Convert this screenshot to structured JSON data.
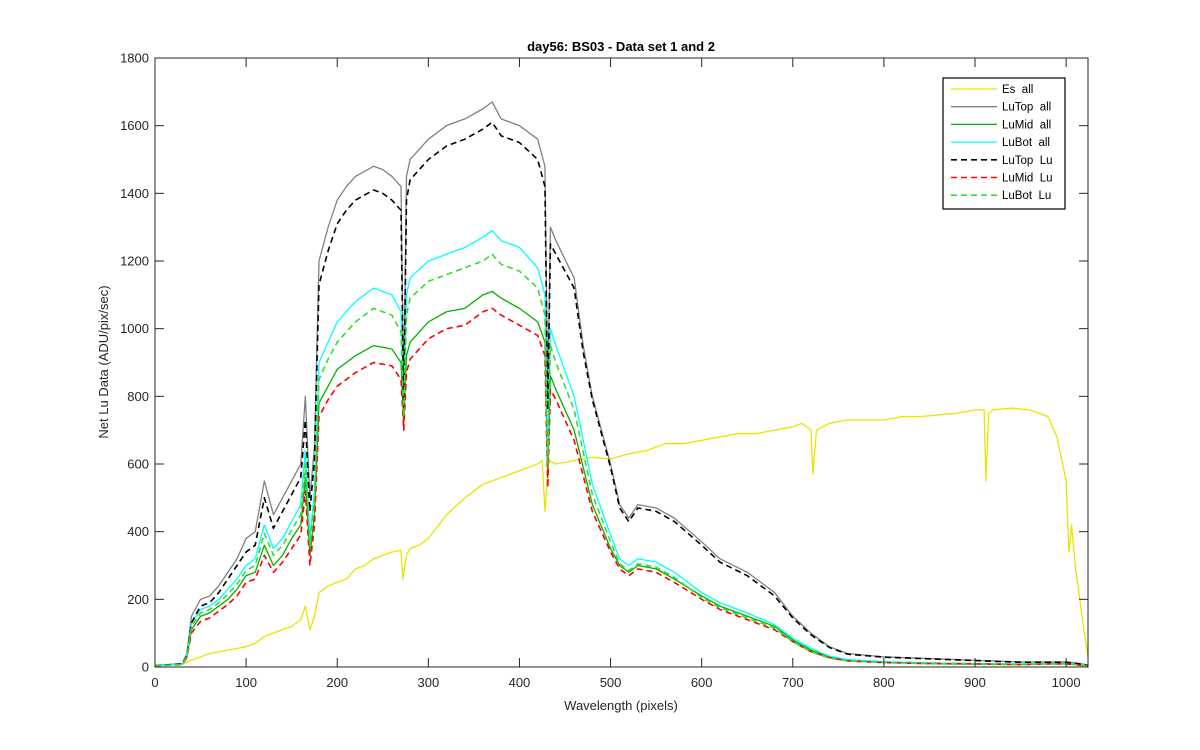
{
  "chart_data": {
    "type": "line",
    "title": "day56: BS03 - Data set 1 and 2",
    "xlabel": "Wavelength (pixels)",
    "ylabel": "Net Lu Data (ADU/pix/sec)",
    "xlim": [
      0,
      1024
    ],
    "ylim": [
      0,
      1800
    ],
    "xticks": [
      0,
      100,
      200,
      300,
      400,
      500,
      600,
      700,
      800,
      900,
      1000
    ],
    "yticks": [
      0,
      200,
      400,
      600,
      800,
      1000,
      1200,
      1400,
      1600,
      1800
    ],
    "grid": false,
    "legend_position": "top-right",
    "series": [
      {
        "name": "Es  all",
        "color": "#e6e600",
        "style": "solid",
        "width": 1.3,
        "x": [
          0,
          30,
          40,
          50,
          60,
          80,
          100,
          110,
          120,
          130,
          140,
          150,
          160,
          165,
          170,
          175,
          180,
          190,
          200,
          210,
          220,
          230,
          240,
          250,
          260,
          270,
          272,
          276,
          280,
          290,
          300,
          320,
          340,
          360,
          380,
          400,
          420,
          425,
          428,
          432,
          440,
          460,
          480,
          500,
          520,
          540,
          560,
          580,
          600,
          620,
          640,
          660,
          680,
          700,
          710,
          720,
          722,
          726,
          740,
          760,
          780,
          800,
          820,
          840,
          860,
          880,
          900,
          910,
          912,
          915,
          920,
          940,
          960,
          980,
          990,
          1000,
          1003,
          1006,
          1010,
          1020,
          1024
        ],
        "values": [
          5,
          8,
          20,
          30,
          40,
          50,
          60,
          70,
          90,
          100,
          110,
          120,
          140,
          180,
          110,
          150,
          220,
          240,
          250,
          260,
          290,
          300,
          320,
          330,
          340,
          345,
          260,
          330,
          350,
          360,
          380,
          450,
          500,
          540,
          560,
          580,
          600,
          610,
          460,
          610,
          600,
          610,
          620,
          615,
          630,
          640,
          660,
          660,
          670,
          680,
          690,
          690,
          700,
          710,
          720,
          700,
          570,
          700,
          720,
          730,
          730,
          730,
          740,
          740,
          745,
          750,
          760,
          760,
          550,
          750,
          760,
          765,
          760,
          740,
          680,
          550,
          340,
          420,
          300,
          100,
          30
        ]
      },
      {
        "name": "LuTop  all",
        "color": "#808080",
        "style": "solid",
        "width": 1.3,
        "x": [
          0,
          30,
          35,
          40,
          50,
          60,
          70,
          80,
          90,
          100,
          110,
          120,
          130,
          140,
          150,
          160,
          165,
          170,
          175,
          180,
          190,
          200,
          210,
          220,
          240,
          250,
          260,
          270,
          273,
          276,
          280,
          300,
          320,
          340,
          360,
          370,
          380,
          400,
          420,
          428,
          431,
          434,
          440,
          460,
          470,
          480,
          490,
          500,
          510,
          520,
          530,
          550,
          570,
          600,
          620,
          650,
          680,
          700,
          720,
          740,
          760,
          800,
          850,
          900,
          950,
          980,
          1000,
          1010,
          1020,
          1024
        ],
        "values": [
          5,
          10,
          40,
          150,
          200,
          210,
          240,
          280,
          320,
          380,
          400,
          550,
          450,
          500,
          550,
          600,
          800,
          500,
          650,
          1200,
          1300,
          1380,
          1420,
          1450,
          1480,
          1470,
          1450,
          1420,
          800,
          1450,
          1500,
          1560,
          1600,
          1620,
          1650,
          1670,
          1620,
          1600,
          1560,
          1480,
          800,
          1300,
          1260,
          1150,
          950,
          800,
          700,
          600,
          480,
          440,
          480,
          470,
          440,
          370,
          320,
          280,
          220,
          150,
          100,
          60,
          40,
          30,
          25,
          20,
          15,
          15,
          15,
          12,
          8,
          5
        ]
      },
      {
        "name": "LuMid  all",
        "color": "#00b300",
        "style": "solid",
        "width": 1.3,
        "x": [
          0,
          30,
          35,
          40,
          50,
          60,
          70,
          80,
          90,
          100,
          110,
          120,
          130,
          140,
          150,
          160,
          165,
          170,
          175,
          180,
          190,
          200,
          220,
          240,
          260,
          270,
          273,
          276,
          280,
          300,
          320,
          340,
          360,
          370,
          380,
          400,
          420,
          428,
          431,
          434,
          440,
          460,
          480,
          500,
          510,
          520,
          530,
          550,
          570,
          600,
          620,
          650,
          680,
          700,
          720,
          740,
          760,
          800,
          850,
          900,
          950,
          980,
          1000,
          1010,
          1020,
          1024
        ],
        "values": [
          5,
          8,
          30,
          110,
          150,
          160,
          180,
          200,
          230,
          270,
          280,
          360,
          300,
          330,
          380,
          420,
          560,
          330,
          450,
          780,
          830,
          880,
          920,
          950,
          940,
          900,
          720,
          920,
          960,
          1020,
          1050,
          1060,
          1100,
          1110,
          1090,
          1060,
          1020,
          960,
          560,
          860,
          820,
          700,
          480,
          350,
          300,
          280,
          300,
          290,
          260,
          210,
          180,
          150,
          120,
          80,
          50,
          30,
          20,
          15,
          12,
          10,
          8,
          10,
          10,
          8,
          5,
          3
        ]
      },
      {
        "name": "LuBot  all",
        "color": "#00ffff",
        "style": "solid",
        "width": 1.3,
        "x": [
          0,
          30,
          35,
          40,
          50,
          60,
          70,
          80,
          90,
          100,
          110,
          120,
          130,
          140,
          150,
          160,
          165,
          170,
          175,
          180,
          190,
          200,
          220,
          240,
          260,
          270,
          273,
          276,
          280,
          300,
          320,
          340,
          360,
          370,
          380,
          400,
          420,
          428,
          431,
          434,
          440,
          460,
          480,
          500,
          510,
          520,
          530,
          550,
          570,
          600,
          620,
          650,
          680,
          700,
          720,
          740,
          760,
          800,
          850,
          900,
          950,
          980,
          1000,
          1010,
          1020,
          1024
        ],
        "values": [
          5,
          8,
          35,
          130,
          170,
          180,
          200,
          230,
          260,
          300,
          320,
          420,
          350,
          380,
          430,
          480,
          640,
          380,
          520,
          900,
          960,
          1020,
          1080,
          1120,
          1100,
          1050,
          780,
          1100,
          1150,
          1200,
          1220,
          1240,
          1270,
          1290,
          1260,
          1240,
          1180,
          1100,
          620,
          1000,
          950,
          800,
          540,
          390,
          320,
          300,
          320,
          310,
          280,
          220,
          190,
          160,
          125,
          85,
          55,
          32,
          22,
          16,
          12,
          10,
          9,
          11,
          11,
          9,
          6,
          3
        ]
      },
      {
        "name": "LuTop  Lu",
        "color": "#000000",
        "style": "dashed",
        "width": 1.6,
        "x": [
          0,
          30,
          35,
          40,
          50,
          60,
          70,
          80,
          90,
          100,
          110,
          120,
          130,
          140,
          150,
          160,
          165,
          170,
          175,
          180,
          190,
          200,
          210,
          220,
          240,
          250,
          260,
          270,
          273,
          276,
          280,
          300,
          320,
          340,
          360,
          370,
          380,
          400,
          420,
          428,
          431,
          434,
          440,
          460,
          470,
          480,
          490,
          500,
          510,
          520,
          530,
          550,
          570,
          600,
          620,
          650,
          680,
          700,
          720,
          740,
          760,
          800,
          850,
          900,
          950,
          980,
          1000,
          1010,
          1020,
          1024
        ],
        "values": [
          4,
          9,
          35,
          130,
          180,
          190,
          220,
          260,
          300,
          340,
          360,
          500,
          410,
          460,
          510,
          560,
          730,
          460,
          610,
          1130,
          1230,
          1310,
          1350,
          1380,
          1410,
          1400,
          1380,
          1350,
          760,
          1380,
          1440,
          1500,
          1540,
          1560,
          1590,
          1610,
          1570,
          1550,
          1500,
          1420,
          760,
          1250,
          1220,
          1120,
          930,
          790,
          690,
          590,
          470,
          430,
          470,
          460,
          430,
          360,
          310,
          270,
          210,
          145,
          95,
          58,
          38,
          29,
          24,
          19,
          14,
          14,
          14,
          11,
          7,
          4
        ]
      },
      {
        "name": "LuMid  Lu",
        "color": "#ff0000",
        "style": "dashed",
        "width": 1.6,
        "x": [
          0,
          30,
          35,
          40,
          50,
          60,
          70,
          80,
          90,
          100,
          110,
          120,
          130,
          140,
          150,
          160,
          165,
          170,
          175,
          180,
          190,
          200,
          220,
          240,
          260,
          270,
          273,
          276,
          280,
          300,
          320,
          340,
          360,
          370,
          380,
          400,
          420,
          428,
          431,
          434,
          440,
          460,
          480,
          500,
          510,
          520,
          530,
          550,
          570,
          600,
          620,
          650,
          680,
          700,
          720,
          740,
          760,
          800,
          850,
          900,
          950,
          980,
          1000,
          1010,
          1020,
          1024
        ],
        "values": [
          4,
          7,
          28,
          100,
          135,
          145,
          165,
          185,
          210,
          250,
          260,
          330,
          280,
          310,
          350,
          390,
          520,
          300,
          420,
          740,
          790,
          830,
          870,
          900,
          890,
          850,
          700,
          870,
          910,
          970,
          1000,
          1010,
          1050,
          1060,
          1040,
          1010,
          980,
          920,
          530,
          820,
          790,
          670,
          460,
          340,
          290,
          270,
          290,
          280,
          250,
          200,
          170,
          140,
          110,
          75,
          45,
          28,
          18,
          13,
          10,
          9,
          7,
          9,
          9,
          7,
          4,
          2
        ]
      },
      {
        "name": "LuBot  Lu",
        "color": "#33dd33",
        "style": "dashed",
        "width": 1.6,
        "x": [
          0,
          30,
          35,
          40,
          50,
          60,
          70,
          80,
          90,
          100,
          110,
          120,
          130,
          140,
          150,
          160,
          165,
          170,
          175,
          180,
          190,
          200,
          220,
          240,
          260,
          270,
          273,
          276,
          280,
          300,
          320,
          340,
          360,
          370,
          380,
          400,
          420,
          428,
          431,
          434,
          440,
          460,
          480,
          500,
          510,
          520,
          530,
          550,
          570,
          600,
          620,
          650,
          680,
          700,
          720,
          740,
          760,
          800,
          850,
          900,
          950,
          980,
          1000,
          1010,
          1020,
          1024
        ],
        "values": [
          4,
          7,
          32,
          120,
          160,
          170,
          190,
          215,
          245,
          285,
          300,
          395,
          330,
          360,
          405,
          450,
          600,
          360,
          490,
          850,
          910,
          960,
          1020,
          1060,
          1040,
          990,
          740,
          1040,
          1090,
          1140,
          1160,
          1180,
          1200,
          1220,
          1190,
          1170,
          1120,
          1040,
          590,
          950,
          900,
          760,
          510,
          370,
          305,
          285,
          305,
          295,
          265,
          205,
          175,
          145,
          115,
          75,
          45,
          26,
          18,
          13,
          10,
          8,
          7,
          9,
          9,
          7,
          4,
          2
        ]
      }
    ]
  }
}
